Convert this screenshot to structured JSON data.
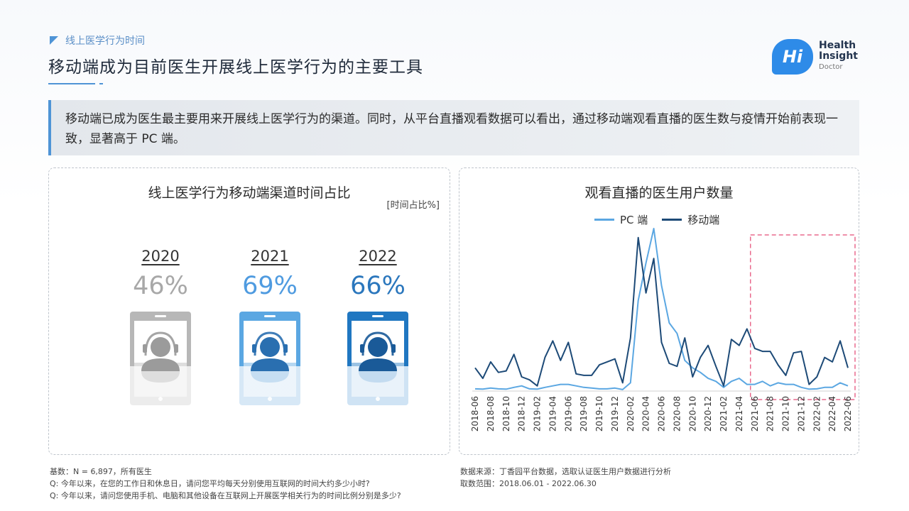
{
  "header": {
    "section": "线上医学行为时间",
    "title": "移动端成为目前医生开展线上医学行为的主要工具"
  },
  "logo": {
    "badge": "Hi",
    "line1": "Health",
    "line2": "Insight",
    "line3": "Doctor"
  },
  "summary": "移动端已成为医生最主要用来开展线上医学行为的渠道。同时，从平台直播观看数据可以看出，通过移动端观看直播的医生数与疫情开始前表现一致，显著高于 PC 端。",
  "colors": {
    "accent": "#4f94d6",
    "gray": "#b4b4b4",
    "light_blue": "#5ba7e2",
    "blue": "#2077c1",
    "pc_line": "#5ba7e2",
    "mobile_line": "#1d4a77",
    "highlight": "#e96a8d"
  },
  "left_panel": {
    "title": "线上医学行为移动端渠道时间占比",
    "unit": "[时间占比%]"
  },
  "right_panel": {
    "title": "观看直播的医生用户数量"
  },
  "chart_data": [
    {
      "type": "bar",
      "title": "线上医学行为移动端渠道时间占比",
      "unit": "[时间占比%]",
      "categories": [
        "2020",
        "2021",
        "2022"
      ],
      "values": [
        46,
        69,
        66
      ],
      "labels": [
        "46%",
        "69%",
        "66%"
      ]
    },
    {
      "type": "line",
      "title": "观看直播的医生用户数量",
      "legend_position": "top",
      "x": [
        "2018-06",
        "2018-07",
        "2018-08",
        "2018-09",
        "2018-10",
        "2018-11",
        "2018-12",
        "2019-01",
        "2019-02",
        "2019-03",
        "2019-04",
        "2019-05",
        "2019-06",
        "2019-07",
        "2019-08",
        "2019-09",
        "2019-10",
        "2019-11",
        "2019-12",
        "2020-01",
        "2020-02",
        "2020-03",
        "2020-04",
        "2020-05",
        "2020-06",
        "2020-07",
        "2020-08",
        "2020-09",
        "2020-10",
        "2020-11",
        "2020-12",
        "2021-01",
        "2021-02",
        "2021-03",
        "2021-04",
        "2021-05",
        "2021-06",
        "2021-07",
        "2021-08",
        "2021-09",
        "2021-10",
        "2021-11",
        "2021-12",
        "2022-01",
        "2022-02",
        "2022-03",
        "2022-04",
        "2022-05",
        "2022-06"
      ],
      "x_tick_labels": [
        "2018-06",
        "2018-08",
        "2018-10",
        "2018-12",
        "2019-02",
        "2019-04",
        "2019-06",
        "2019-08",
        "2019-10",
        "2019-12",
        "2020-02",
        "2020-04",
        "2020-06",
        "2020-08",
        "2020-10",
        "2020-12",
        "2021-02",
        "2021-04",
        "2021-06",
        "2021-08",
        "2021-10",
        "2021-12",
        "2022-02",
        "2022-04",
        "2022-06"
      ],
      "series": [
        {
          "name": "PC 端",
          "values": [
            1,
            0.8,
            1.5,
            1,
            0.8,
            2,
            3,
            1,
            0.8,
            2,
            3,
            4,
            4,
            3,
            2,
            1.5,
            1,
            1,
            1.5,
            0.5,
            5,
            60,
            85,
            108,
            70,
            45,
            38,
            20,
            15,
            12,
            8,
            6,
            2,
            6,
            8,
            4,
            4,
            6,
            3,
            5,
            4,
            4,
            2,
            0.8,
            1,
            2,
            2,
            5,
            3
          ]
        },
        {
          "name": "移动端",
          "values": [
            15,
            8,
            19,
            12,
            13,
            24,
            9,
            7,
            3,
            22,
            33,
            20,
            32,
            11,
            10,
            10,
            17,
            19,
            21,
            5,
            35,
            102,
            65,
            88,
            32,
            18,
            16,
            35,
            9,
            22,
            30,
            16,
            3,
            34,
            30,
            41,
            28,
            26,
            26,
            17,
            10,
            25,
            26,
            4,
            9,
            22,
            19,
            33,
            15
          ]
        }
      ],
      "highlight_range": [
        "2021-06",
        "2022-06"
      ]
    }
  ],
  "notes_left": [
    "基数：N = 6,897，所有医生",
    "Q: 今年以来，在您的工作日和休息日，请问您平均每天分别使用互联网的时间大约多少小时?",
    "Q: 今年以来，请问您使用手机、电脑和其他设备在互联网上开展医学相关行为的时间比例分别是多少?"
  ],
  "notes_right": [
    "数据来源：丁香园平台数据，选取认证医生用户数据进行分析",
    "取数范围：2018.06.01 - 2022.06.30"
  ]
}
